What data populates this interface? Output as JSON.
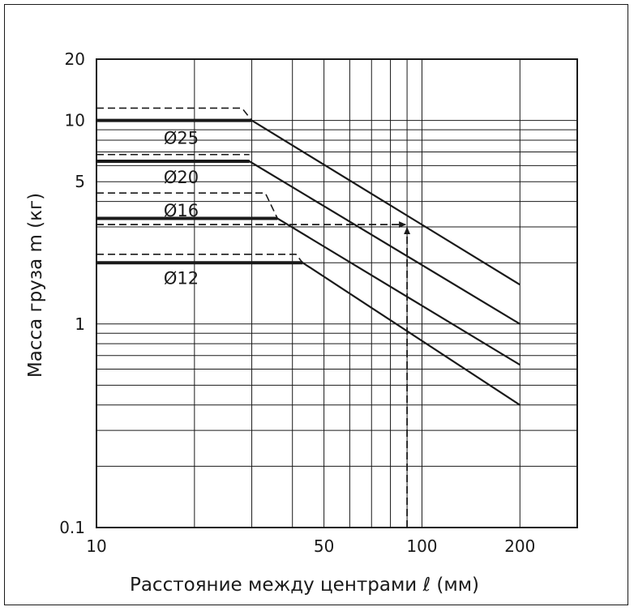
{
  "chart_data": {
    "type": "line",
    "xscale": "log",
    "yscale": "log",
    "xlim": [
      10,
      300
    ],
    "ylim": [
      0.1,
      20
    ],
    "xlabel": "Расстояние между центрами ℓ  (мм)",
    "ylabel": "Масса груза m (кг)",
    "xticks": [
      {
        "value": 10,
        "label": "10"
      },
      {
        "value": 50,
        "label": "50"
      },
      {
        "value": 100,
        "label": "100"
      },
      {
        "value": 200,
        "label": "200"
      }
    ],
    "yticks": [
      {
        "value": 0.1,
        "label": "0.1"
      },
      {
        "value": 1,
        "label": "1"
      },
      {
        "value": 5,
        "label": "5"
      },
      {
        "value": 10,
        "label": "10"
      },
      {
        "value": 20,
        "label": "20"
      }
    ],
    "grid": true,
    "series": [
      {
        "name": "Ø25",
        "style": "solid-bold",
        "x": [
          10,
          30,
          200
        ],
        "y": [
          10,
          10,
          1.56
        ]
      },
      {
        "name": "Ø25",
        "style": "dashed",
        "x": [
          10,
          28,
          30
        ],
        "y": [
          11.5,
          11.5,
          10
        ]
      },
      {
        "name": "Ø20",
        "style": "solid-bold",
        "x": [
          10,
          29.5,
          200
        ],
        "y": [
          6.3,
          6.3,
          1.0
        ]
      },
      {
        "name": "Ø20",
        "style": "dashed",
        "x": [
          10,
          29.5
        ],
        "y": [
          6.8,
          6.8
        ]
      },
      {
        "name": "Ø16",
        "style": "solid-bold",
        "x": [
          10,
          36,
          200
        ],
        "y": [
          3.3,
          3.3,
          0.63
        ]
      },
      {
        "name": "Ø16",
        "style": "dashed",
        "x": [
          10,
          33,
          36
        ],
        "y": [
          4.4,
          4.4,
          3.3
        ]
      },
      {
        "name": "Ø12",
        "style": "solid-bold",
        "x": [
          10,
          43,
          200
        ],
        "y": [
          2.0,
          2.0,
          0.4
        ]
      },
      {
        "name": "Ø12",
        "style": "dashed",
        "x": [
          10,
          41,
          43
        ],
        "y": [
          2.2,
          2.2,
          2.0
        ]
      }
    ],
    "labels": [
      {
        "text": "Ø25",
        "x": 18,
        "y": 8.4
      },
      {
        "text": "Ø20",
        "x": 18,
        "y": 5.4
      },
      {
        "text": "Ø16",
        "x": 18,
        "y": 3.7
      },
      {
        "text": "Ø12",
        "x": 18,
        "y": 1.72
      }
    ],
    "example_arrow": {
      "x": 90,
      "y": 3.08
    }
  }
}
